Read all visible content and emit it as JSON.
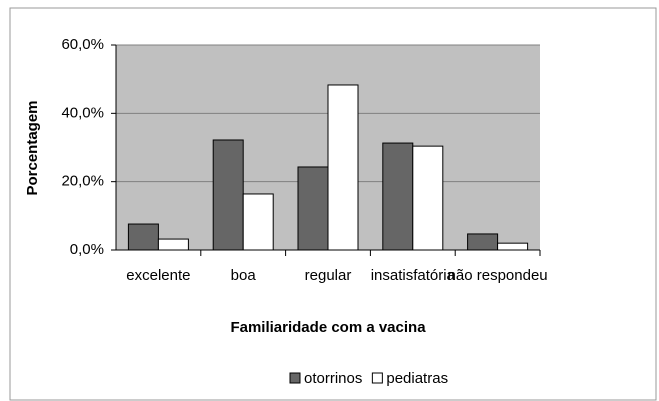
{
  "chart_data": {
    "type": "bar",
    "x_label": "Familiaridade com a vacina",
    "y_label": "Porcentagem",
    "categories": [
      "excelente",
      "boa",
      "regular",
      "insatisfatória",
      "não respondeu"
    ],
    "series": [
      {
        "name": "otorrinos",
        "color": "#666666",
        "values": [
          7.6,
          32.2,
          24.3,
          31.3,
          4.7
        ]
      },
      {
        "name": "pediatras",
        "color": "#ffffff",
        "values": [
          3.2,
          16.4,
          48.3,
          30.4,
          2.0
        ]
      }
    ],
    "ylim": [
      0,
      60
    ],
    "yticks": [
      {
        "value": 0,
        "label": "0,0%"
      },
      {
        "value": 20,
        "label": "20,0%"
      },
      {
        "value": 40,
        "label": "40,0%"
      },
      {
        "value": 60,
        "label": "60,0%"
      }
    ],
    "grid": true,
    "legend": "bottom"
  }
}
